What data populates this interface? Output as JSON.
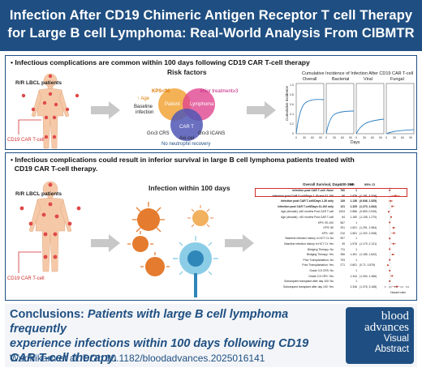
{
  "header": {
    "line1": "Infection After CD19 Chimeric Antigen Receptor T cell Therapy",
    "line2": "for Large B cell Lymphoma: Real-World Analysis From CIBMTR"
  },
  "panel1": {
    "bullet": "• Infectious complications are common within 100 days following CD19 CAR T-cell therapy",
    "patients_label": "R/R LBCL patients",
    "cart_label": "CD19 CAR T-cell",
    "risk_title": "Risk factors",
    "venn": {
      "kps": "KPS<90",
      "age": "↑ Age",
      "baseline": "Baseline",
      "baseline2": "infection",
      "prior": "Prior treatment≥3",
      "patient": "Patient",
      "lymphoma": "Lymphoma",
      "cart": "CAR T",
      "crs": "Gr≥3 CRS",
      "icans": "Gr≥3 ICANS",
      "axicel": "Axi-cel",
      "neutro": "No neutrophil recovery"
    },
    "chart": {
      "title": "Cumulative Incidence of Infection After CD19 CAR T-cell",
      "panels": [
        "Overall",
        "Bacterial",
        "Viral",
        "Fungal"
      ],
      "ylabel": "Cumulative Incidence",
      "xlabel": "Days",
      "yticks": [
        "1.0",
        "0.8",
        "0.6",
        "0.4",
        "0.2",
        "0"
      ],
      "xticks": [
        "0",
        "30",
        "60",
        "90"
      ]
    }
  },
  "panel2": {
    "bullet_line1": "• Infectious complications could result in inferior survival in large B cell lymphoma patients treated with",
    "bullet_line2": "  CD19 CAR T-cell therapy.",
    "patients_label": "R/R LBCL patients",
    "cart_label": "CD19 CAR T-cell",
    "infection_title": "Infection within 100 days",
    "forest": {
      "title": "Overall Survival, Day 100-360",
      "col_n": "N",
      "col_hr": "HR",
      "col_ci": "95% CI",
      "xlabel": "Hazard ratio",
      "xticks": [
        "0.5",
        "1.0",
        "2.0",
        "4.0",
        "8.0"
      ],
      "rows": [
        {
          "label": "Infection post CAR T-cell: None",
          "n": "760",
          "hr": "1",
          "ci": ""
        },
        {
          "label": "Infection post CAR T-cell/Days 1-30 and 31-100",
          "n": "50",
          "hr": "1.979",
          "ci": "(1.181, 3.316)"
        },
        {
          "label": "Infection post CAR T-cell/Days 1-30 only",
          "n": "139",
          "hr": "1.136",
          "ci": "(0.846, 1.525)"
        },
        {
          "label": "Infection post CAR T-cell/Days 31-100 only",
          "n": "121",
          "hr": "1.325",
          "ci": "(1.270, 1.842)"
        },
        {
          "label": "Age (decade), ≥60 months Post CAR T-cell",
          "n": "1004",
          "hr": "0.886",
          "ci": "(0.809, 0.949)"
        },
        {
          "label": "Age (decade), <60 months Post CAR T-cell",
          "n": "64",
          "hr": "1.180",
          "ci": "(1.108, 1.270)"
        },
        {
          "label": "KPS: 90-100",
          "n": "567",
          "hr": "1",
          "ci": ""
        },
        {
          "label": "KPS: 80",
          "n": "291",
          "hr": "1.601",
          "ci": "(1.291, 1.984)"
        },
        {
          "label": "KPS: <80",
          "n": "210",
          "hr": "1.651",
          "ci": "(1.202, 2.008)"
        },
        {
          "label": "Baseline infection history in HCT Ct: No",
          "n": "907",
          "hr": "1",
          "ci": ""
        },
        {
          "label": "Baseline infection history in HCT Ct: Yes",
          "n": "49",
          "hr": "1.578",
          "ci": "(1.179, 2.121)"
        },
        {
          "label": "Bridging Therapy: No",
          "n": "711",
          "hr": "1",
          "ci": ""
        },
        {
          "label": "Bridging Therapy: Yes",
          "n": "356",
          "hr": "1.451",
          "ci": "(1.185, 1.842)"
        },
        {
          "label": "Prior Transplantation: No",
          "n": "793",
          "hr": "1",
          "ci": ""
        },
        {
          "label": "Prior Transplantation: Yes",
          "n": "271",
          "hr": "0.801",
          "ci": "(0.71, 0.879)"
        },
        {
          "label": "Grade 3-5 CRS: No",
          "n": "",
          "hr": "1",
          "ci": ""
        },
        {
          "label": "Grade 3-5 CRS: Yes",
          "n": "",
          "hr": "1.344",
          "ci": "(1.094, 1.486)"
        },
        {
          "label": "Subsequent transplant after day 100: No",
          "n": "",
          "hr": "1",
          "ci": ""
        },
        {
          "label": "Subsequent transplant after day 100: Yes",
          "n": "",
          "hr": "2.346",
          "ci": "(1.376, 3.168)"
        }
      ]
    }
  },
  "bottom": {
    "concl_label": "Conclusions:",
    "concl_text1": " Patients with large B cell lymphoma frequently",
    "concl_text2": "experience infections within 100 days following CD19",
    "concl_text3": "CAR T-cell therapy.",
    "citation": "Wudhikarn et al. DOI: 10.1182/bloodadvances.2025016141",
    "logo1": "blood",
    "logo2": "advances",
    "logo3": "Visual",
    "logo4": "Abstract"
  }
}
